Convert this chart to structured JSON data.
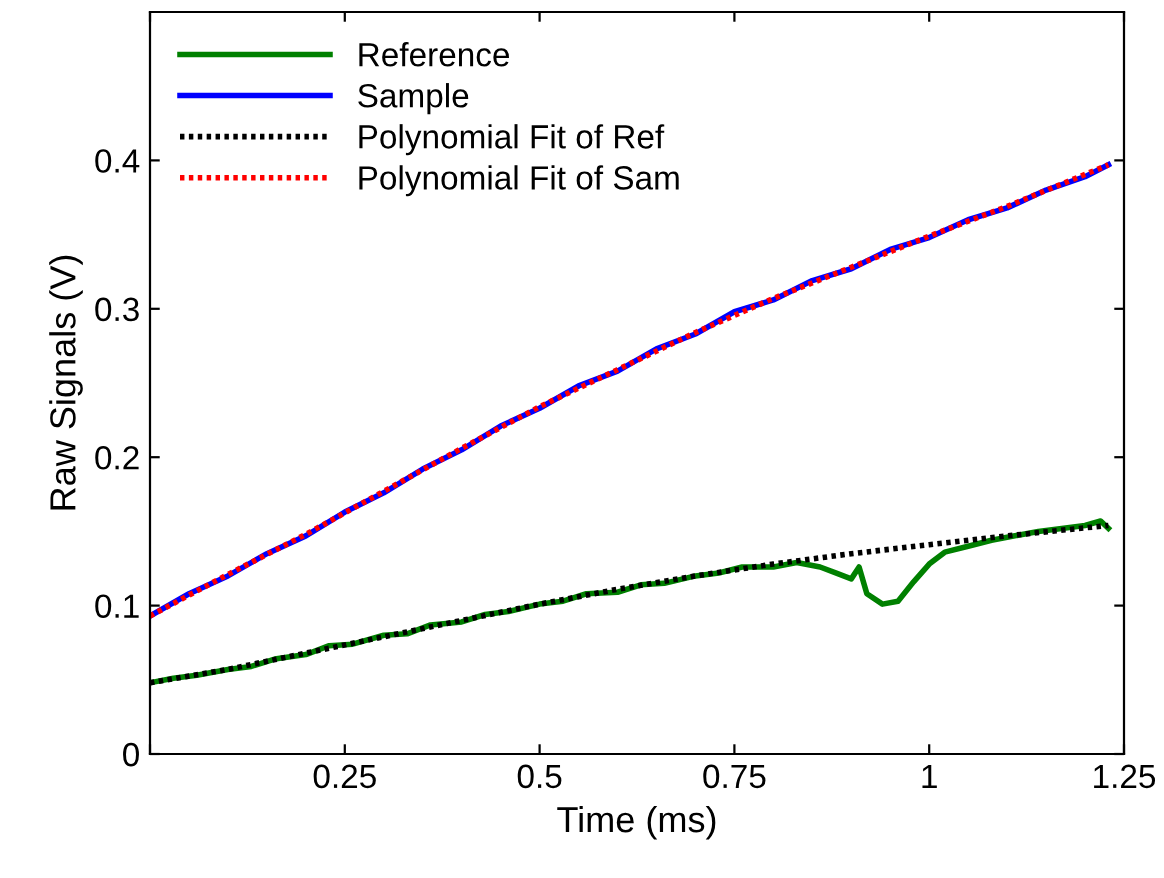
{
  "chart_data": {
    "type": "line",
    "xlabel": "Time (ms)",
    "ylabel": "Raw Signals (V)",
    "xlim": [
      0,
      1.25
    ],
    "ylim": [
      0,
      0.5
    ],
    "xticks": [
      {
        "value": 0,
        "label": null
      },
      0.25,
      0.5,
      0.75,
      1,
      1.25
    ],
    "yticks": [
      0,
      0.1,
      0.2,
      0.3,
      0.4
    ],
    "legend": "top left",
    "grid": false,
    "series": [
      {
        "name": "Reference",
        "color": "#008000",
        "line_style": "solid",
        "x": [
          0,
          0.03,
          0.06,
          0.1,
          0.13,
          0.16,
          0.2,
          0.23,
          0.26,
          0.3,
          0.33,
          0.36,
          0.4,
          0.43,
          0.46,
          0.5,
          0.53,
          0.56,
          0.6,
          0.63,
          0.66,
          0.7,
          0.73,
          0.76,
          0.8,
          0.83,
          0.86,
          0.88,
          0.9,
          0.91,
          0.92,
          0.94,
          0.96,
          0.98,
          1.0,
          1.02,
          1.05,
          1.08,
          1.11,
          1.14,
          1.17,
          1.2,
          1.22,
          1.23
        ],
        "values": [
          0.048,
          0.051,
          0.053,
          0.057,
          0.059,
          0.064,
          0.067,
          0.073,
          0.074,
          0.08,
          0.081,
          0.087,
          0.089,
          0.094,
          0.096,
          0.101,
          0.103,
          0.108,
          0.109,
          0.114,
          0.115,
          0.12,
          0.122,
          0.126,
          0.126,
          0.129,
          0.126,
          0.122,
          0.118,
          0.126,
          0.108,
          0.101,
          0.103,
          0.116,
          0.128,
          0.136,
          0.14,
          0.144,
          0.147,
          0.15,
          0.152,
          0.154,
          0.157,
          0.152
        ]
      },
      {
        "name": "Sample",
        "color": "#0000ff",
        "line_style": "solid",
        "x": [
          0,
          0.05,
          0.1,
          0.15,
          0.2,
          0.25,
          0.3,
          0.35,
          0.4,
          0.45,
          0.5,
          0.55,
          0.6,
          0.65,
          0.7,
          0.75,
          0.8,
          0.85,
          0.9,
          0.95,
          1.0,
          1.05,
          1.1,
          1.15,
          1.2,
          1.23
        ],
        "values": [
          0.093,
          0.108,
          0.12,
          0.135,
          0.147,
          0.163,
          0.176,
          0.192,
          0.205,
          0.221,
          0.233,
          0.248,
          0.258,
          0.273,
          0.283,
          0.298,
          0.306,
          0.319,
          0.327,
          0.34,
          0.348,
          0.36,
          0.368,
          0.38,
          0.389,
          0.397
        ]
      },
      {
        "name": "Polynomial Fit of Ref",
        "color": "#000000",
        "line_style": "dotted",
        "x": [
          0,
          0.1,
          0.2,
          0.3,
          0.4,
          0.5,
          0.6,
          0.7,
          0.8,
          0.9,
          1.0,
          1.1,
          1.23
        ],
        "values": [
          0.048,
          0.057,
          0.068,
          0.079,
          0.09,
          0.101,
          0.111,
          0.12,
          0.128,
          0.135,
          0.141,
          0.147,
          0.154
        ]
      },
      {
        "name": "Polynomial Fit of Sam",
        "color": "#ff0000",
        "line_style": "dotted",
        "x": [
          0,
          0.1,
          0.2,
          0.3,
          0.4,
          0.5,
          0.6,
          0.7,
          0.8,
          0.9,
          1.0,
          1.1,
          1.23
        ],
        "values": [
          0.093,
          0.121,
          0.148,
          0.177,
          0.206,
          0.234,
          0.259,
          0.284,
          0.307,
          0.328,
          0.349,
          0.369,
          0.397
        ]
      }
    ]
  }
}
